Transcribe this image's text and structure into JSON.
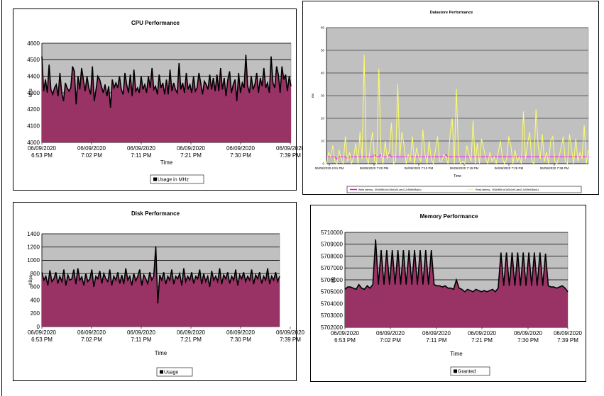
{
  "chart_data": [
    {
      "type": "area",
      "title": "CPU Performance",
      "xlabel": "Time",
      "ylabel": "MHz",
      "ylim": [
        4000,
        4600
      ],
      "yticks": [
        "4000",
        "4100",
        "4200",
        "4300",
        "4400",
        "4500",
        "4600"
      ],
      "xtick_labels": [
        [
          "06/09/2020",
          "6:53 PM"
        ],
        [
          "06/09/2020",
          "7:02 PM"
        ],
        [
          "06/09/2020",
          "7:11 PM"
        ],
        [
          "06/09/2020",
          "7:21 PM"
        ],
        [
          "06/09/2020",
          "7:30 PM"
        ],
        [
          "06/09/2020",
          "7:39 PM"
        ]
      ],
      "grid": true,
      "legend_position": "bottom",
      "colors": {
        "fill": "#993366",
        "line": "#000000",
        "plot_bg": "#c0c0c0"
      },
      "series": [
        {
          "name": "Usage in MHz",
          "values": [
            4520,
            4310,
            4380,
            4300,
            4470,
            4320,
            4290,
            4330,
            4350,
            4280,
            4420,
            4300,
            4250,
            4360,
            4330,
            4310,
            4330,
            4460,
            4430,
            4230,
            4400,
            4320,
            4450,
            4380,
            4310,
            4400,
            4330,
            4290,
            4460,
            4250,
            4320,
            4400,
            4380,
            4340,
            4300,
            4350,
            4280,
            4340,
            4210,
            4380,
            4330,
            4360,
            4330,
            4400,
            4320,
            4290,
            4420,
            4350,
            4300,
            4410,
            4280,
            4440,
            4310,
            4330,
            4300,
            4400,
            4320,
            4350,
            4300,
            4400,
            4330,
            4450,
            4320,
            4340,
            4290,
            4410,
            4330,
            4360,
            4290,
            4380,
            4290,
            4440,
            4310,
            4360,
            4320,
            4300,
            4480,
            4320,
            4360,
            4300,
            4420,
            4320,
            4350,
            4300,
            4400,
            4310,
            4330,
            4420,
            4360,
            4290,
            4370,
            4350,
            4320,
            4410,
            4320,
            4390,
            4310,
            4410,
            4310,
            4450,
            4320,
            4390,
            4280,
            4380,
            4430,
            4300,
            4350,
            4380,
            4250,
            4420,
            4300,
            4360,
            4330,
            4530,
            4340,
            4300,
            4400,
            4320,
            4350,
            4420,
            4300,
            4390,
            4340,
            4450,
            4330,
            4360,
            4300,
            4520,
            4360,
            4330,
            4460,
            4410,
            4300,
            4460,
            4380,
            4410,
            4310,
            4400,
            4340
          ]
        }
      ]
    },
    {
      "type": "line",
      "title": "Datastore Performance",
      "xlabel": "Time",
      "ylabel": "ms",
      "ylim": [
        0,
        60
      ],
      "yticks": [
        "0",
        "10",
        "20",
        "30",
        "40",
        "50",
        "60"
      ],
      "xtick_labels": [
        "06/09/2020 6:51 PM",
        "06/09/2020 7:00 PM",
        "06/09/2020 7:10 PM",
        "06/09/2020 7:19 PM",
        "06/09/2020 7:28 PM",
        "06/09/2020 7:38 PM"
      ],
      "grid": true,
      "legend_position": "bottom",
      "colors": {
        "plot_bg": "#c0c0c0"
      },
      "series": [
        {
          "name": "Write latency - 5f3d0f86-bd1d5c0cf3-aec0-2c59e848ad1c",
          "color": "#ff00ff",
          "values": [
            3,
            3,
            3,
            3,
            3,
            2,
            3,
            3,
            3,
            3,
            2,
            3,
            3,
            3,
            3,
            3,
            3,
            3,
            3,
            3,
            3,
            3,
            3,
            4,
            3,
            3,
            4,
            3,
            3,
            3,
            4,
            3,
            3,
            3,
            3,
            3,
            3,
            3,
            3,
            3,
            3,
            3,
            3,
            3,
            3,
            3,
            3,
            3,
            3,
            3,
            3,
            3,
            3,
            3,
            3,
            3,
            3,
            4,
            3,
            3,
            3,
            3,
            3,
            3,
            3,
            3,
            3,
            3,
            3,
            3,
            3,
            3,
            3,
            3,
            3,
            3,
            3,
            3,
            3,
            3,
            3,
            3,
            3,
            3,
            3,
            3,
            3,
            3,
            3,
            3,
            3,
            3,
            3,
            3,
            3,
            3,
            3,
            3,
            3,
            3,
            3,
            3,
            3,
            3,
            3,
            3,
            3,
            3,
            3,
            3,
            3,
            3,
            3,
            3,
            3,
            3,
            3,
            3,
            3,
            3,
            3,
            3,
            3,
            3,
            3,
            3
          ]
        },
        {
          "name": "Read latency - 5f3d0f86-bd1d5c0cf3-aec0-2c59e848ad1c",
          "color": "#ffff66",
          "values": [
            0,
            5,
            3,
            8,
            1,
            0,
            6,
            2,
            0,
            12,
            1,
            5,
            0,
            3,
            9,
            0,
            14,
            2,
            48,
            3,
            0,
            8,
            14,
            1,
            0,
            42,
            5,
            0,
            10,
            2,
            6,
            18,
            0,
            1,
            35,
            3,
            14,
            8,
            0,
            4,
            1,
            12,
            0,
            7,
            3,
            1,
            15,
            4,
            0,
            10,
            2,
            0,
            6,
            12,
            1,
            1,
            4,
            3,
            0,
            13,
            20,
            0,
            33,
            4,
            0,
            1,
            0,
            8,
            4,
            1,
            19,
            0,
            9,
            0,
            11,
            7,
            2,
            0,
            5,
            1,
            3,
            0,
            5,
            10,
            2,
            0,
            2,
            12,
            8,
            0,
            6,
            1,
            3,
            0,
            23,
            2,
            9,
            14,
            1,
            0,
            24,
            8,
            2,
            13,
            1,
            5,
            0,
            10,
            12,
            1,
            0,
            3,
            7,
            12,
            1,
            0,
            13,
            6,
            0,
            11,
            1,
            5,
            2,
            17,
            0,
            6
          ]
        }
      ]
    },
    {
      "type": "area",
      "title": "Disk Performance",
      "xlabel": "Time",
      "ylabel": "KBps",
      "ylim": [
        0,
        1400
      ],
      "yticks": [
        "0",
        "200",
        "400",
        "600",
        "800",
        "1000",
        "1200",
        "1400"
      ],
      "xtick_labels": [
        [
          "06/09/2020",
          "6:53 PM"
        ],
        [
          "06/09/2020",
          "7:02 PM"
        ],
        [
          "06/09/2020",
          "7:11 PM"
        ],
        [
          "06/09/2020",
          "7:21 PM"
        ],
        [
          "06/09/2020",
          "7:30 PM"
        ],
        [
          "06/09/2020",
          "7:39 PM"
        ]
      ],
      "grid": true,
      "legend_position": "bottom",
      "colors": {
        "fill": "#993366",
        "line": "#000000",
        "plot_bg": "#c0c0c0"
      },
      "series": [
        {
          "name": "Usage",
          "values": [
            820,
            700,
            760,
            620,
            850,
            680,
            720,
            820,
            650,
            760,
            680,
            860,
            620,
            780,
            700,
            720,
            860,
            640,
            880,
            700,
            750,
            620,
            800,
            680,
            720,
            860,
            600,
            760,
            720,
            840,
            650,
            800,
            720,
            680,
            860,
            620,
            760,
            700,
            820,
            650,
            780,
            640,
            880,
            700,
            760,
            620,
            800,
            690,
            760,
            860,
            620,
            780,
            720,
            650,
            820,
            700,
            760,
            1210,
            350,
            780,
            700,
            820,
            640,
            760,
            700,
            860,
            640,
            760,
            720,
            800,
            620,
            880,
            680,
            760,
            700,
            820,
            650,
            760,
            720,
            860,
            640,
            800,
            680,
            760,
            600,
            840,
            700,
            760,
            680,
            880,
            640,
            780,
            720,
            820,
            650,
            760,
            700,
            860,
            620,
            780,
            720,
            820,
            680,
            760,
            700,
            860,
            640,
            780,
            720,
            820,
            650,
            760,
            700,
            880,
            640,
            760,
            700,
            820,
            680,
            760
          ]
        }
      ]
    },
    {
      "type": "area",
      "title": "Memory Performance",
      "xlabel": "Time",
      "ylabel": "KB",
      "ylim": [
        5702000,
        5710000
      ],
      "yticks": [
        "5702000",
        "5703000",
        "5704000",
        "5705000",
        "5706000",
        "5707000",
        "5708000",
        "5709000",
        "5710000"
      ],
      "xtick_labels": [
        [
          "06/09/2020",
          "6:53 PM"
        ],
        [
          "06/09/2020",
          "7:02 PM"
        ],
        [
          "06/09/2020",
          "7:11 PM"
        ],
        [
          "06/09/2020",
          "7:21 PM"
        ],
        [
          "06/09/2020",
          "7:30 PM"
        ],
        [
          "06/09/2020",
          "7:39 PM"
        ]
      ],
      "grid": true,
      "legend_position": "bottom",
      "colors": {
        "fill": "#993366",
        "line": "#000000",
        "plot_bg": "#c0c0c0"
      },
      "series": [
        {
          "name": "Granted",
          "values": [
            5705200,
            5705400,
            5705400,
            5705300,
            5705200,
            5705600,
            5705300,
            5705200,
            5705500,
            5705300,
            5705600,
            5709400,
            5705600,
            5708500,
            5705600,
            5708500,
            5705600,
            5708500,
            5705600,
            5708500,
            5705600,
            5708500,
            5705600,
            5708500,
            5705600,
            5708500,
            5705600,
            5708500,
            5705600,
            5708500,
            5705600,
            5708500,
            5705600,
            5705500,
            5705500,
            5705400,
            5705500,
            5705300,
            5705300,
            5705200,
            5706000,
            5705300,
            5705200,
            5705000,
            5705200,
            5705100,
            5705000,
            5705200,
            5705100,
            5705000,
            5705100,
            5705000,
            5705100,
            5705200,
            5705000,
            5705300,
            5708300,
            5705500,
            5708300,
            5705500,
            5708300,
            5705500,
            5708300,
            5705500,
            5708300,
            5705500,
            5708300,
            5705500,
            5708300,
            5705500,
            5708300,
            5705500,
            5708200,
            5705500,
            5705400,
            5705400,
            5705300,
            5705400,
            5705500,
            5705300,
            5705000
          ]
        }
      ]
    }
  ]
}
